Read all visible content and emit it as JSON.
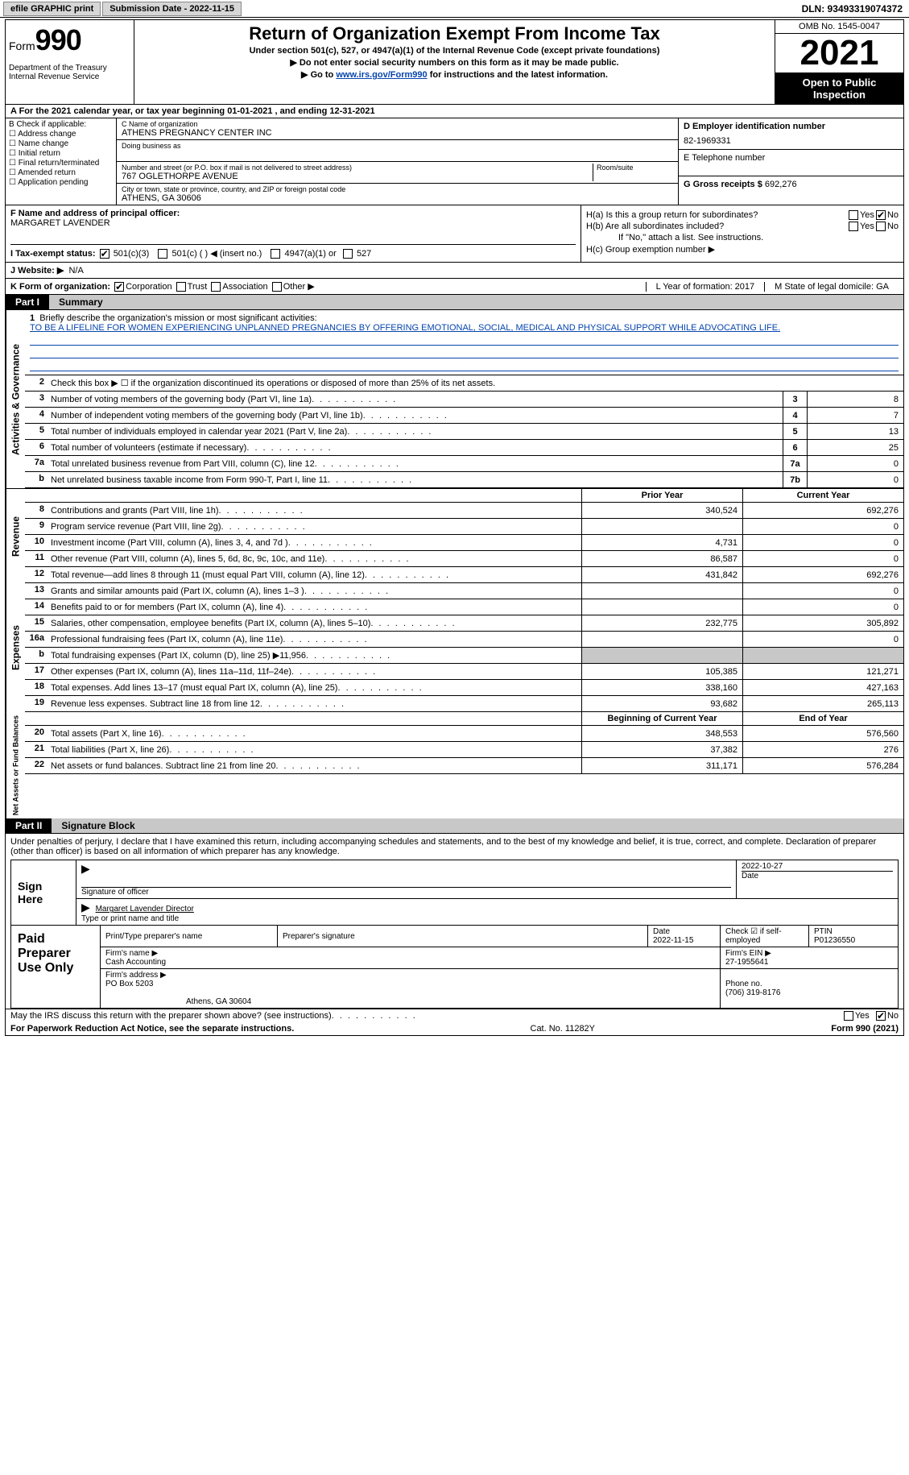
{
  "topbar": {
    "efile": "efile GRAPHIC print",
    "submission_label": "Submission Date - 2022-11-15",
    "dln": "DLN: 93493319074372"
  },
  "header": {
    "form_word": "Form",
    "form_num": "990",
    "dept": "Department of the Treasury Internal Revenue Service",
    "title": "Return of Organization Exempt From Income Tax",
    "sub1": "Under section 501(c), 527, or 4947(a)(1) of the Internal Revenue Code (except private foundations)",
    "sub2": "▶ Do not enter social security numbers on this form as it may be made public.",
    "sub3_pre": "▶ Go to ",
    "sub3_link": "www.irs.gov/Form990",
    "sub3_post": " for instructions and the latest information.",
    "omb": "OMB No. 1545-0047",
    "year": "2021",
    "open": "Open to Public Inspection"
  },
  "row_a": "A For the 2021 calendar year, or tax year beginning 01-01-2021   , and ending 12-31-2021",
  "col_b": {
    "label": "B Check if applicable:",
    "opts": [
      "Address change",
      "Name change",
      "Initial return",
      "Final return/terminated",
      "Amended return",
      "Application pending"
    ]
  },
  "col_c": {
    "name_label": "C Name of organization",
    "name": "ATHENS PREGNANCY CENTER INC",
    "dba_label": "Doing business as",
    "addr_label": "Number and street (or P.O. box if mail is not delivered to street address)",
    "room_label": "Room/suite",
    "addr": "767 OGLETHORPE AVENUE",
    "city_label": "City or town, state or province, country, and ZIP or foreign postal code",
    "city": "ATHENS, GA  30606"
  },
  "col_d": {
    "ein_label": "D Employer identification number",
    "ein": "82-1969331",
    "tel_label": "E Telephone number",
    "gross_label": "G Gross receipts $",
    "gross": "692,276"
  },
  "col_f": {
    "label": "F Name and address of principal officer:",
    "name": "MARGARET LAVENDER"
  },
  "col_h": {
    "ha": "H(a)  Is this a group return for subordinates?",
    "hb": "H(b)  Are all subordinates included?",
    "hb_note": "If \"No,\" attach a list. See instructions.",
    "hc": "H(c)  Group exemption number ▶",
    "yes": "Yes",
    "no": "No"
  },
  "row_i": {
    "label": "I    Tax-exempt status:",
    "o1": "501(c)(3)",
    "o2": "501(c) (  ) ◀ (insert no.)",
    "o3": "4947(a)(1) or",
    "o4": "527"
  },
  "row_j": {
    "label": "J   Website: ▶",
    "val": "N/A"
  },
  "row_k": {
    "label": "K Form of organization:",
    "o1": "Corporation",
    "o2": "Trust",
    "o3": "Association",
    "o4": "Other ▶",
    "l": "L Year of formation: 2017",
    "m": "M State of legal domicile: GA"
  },
  "part1": {
    "tab": "Part I",
    "title": "Summary"
  },
  "mission": {
    "num": "1",
    "label": "Briefly describe the organization's mission or most significant activities:",
    "text": "TO BE A LIFELINE FOR WOMEN EXPERIENCING UNPLANNED PREGNANCIES BY OFFERING EMOTIONAL, SOCIAL, MEDICAL AND PHYSICAL SUPPORT WHILE ADVOCATING LIFE."
  },
  "line2": "Check this box ▶ ☐ if the organization discontinued its operations or disposed of more than 25% of its net assets.",
  "side_labels": {
    "gov": "Activities & Governance",
    "rev": "Revenue",
    "exp": "Expenses",
    "net": "Net Assets or Fund Balances"
  },
  "gov_rows": [
    {
      "n": "3",
      "t": "Number of voting members of the governing body (Part VI, line 1a)",
      "box": "3",
      "v": "8"
    },
    {
      "n": "4",
      "t": "Number of independent voting members of the governing body (Part VI, line 1b)",
      "box": "4",
      "v": "7"
    },
    {
      "n": "5",
      "t": "Total number of individuals employed in calendar year 2021 (Part V, line 2a)",
      "box": "5",
      "v": "13"
    },
    {
      "n": "6",
      "t": "Total number of volunteers (estimate if necessary)",
      "box": "6",
      "v": "25"
    },
    {
      "n": "7a",
      "t": "Total unrelated business revenue from Part VIII, column (C), line 12",
      "box": "7a",
      "v": "0"
    },
    {
      "n": "b",
      "t": "Net unrelated business taxable income from Form 990-T, Part I, line 11",
      "box": "7b",
      "v": "0"
    }
  ],
  "col_headers": {
    "prior": "Prior Year",
    "current": "Current Year"
  },
  "rev_rows": [
    {
      "n": "8",
      "t": "Contributions and grants (Part VIII, line 1h)",
      "p": "340,524",
      "c": "692,276"
    },
    {
      "n": "9",
      "t": "Program service revenue (Part VIII, line 2g)",
      "p": "",
      "c": "0"
    },
    {
      "n": "10",
      "t": "Investment income (Part VIII, column (A), lines 3, 4, and 7d )",
      "p": "4,731",
      "c": "0"
    },
    {
      "n": "11",
      "t": "Other revenue (Part VIII, column (A), lines 5, 6d, 8c, 9c, 10c, and 11e)",
      "p": "86,587",
      "c": "0"
    },
    {
      "n": "12",
      "t": "Total revenue—add lines 8 through 11 (must equal Part VIII, column (A), line 12)",
      "p": "431,842",
      "c": "692,276"
    }
  ],
  "exp_rows": [
    {
      "n": "13",
      "t": "Grants and similar amounts paid (Part IX, column (A), lines 1–3 )",
      "p": "",
      "c": "0"
    },
    {
      "n": "14",
      "t": "Benefits paid to or for members (Part IX, column (A), line 4)",
      "p": "",
      "c": "0"
    },
    {
      "n": "15",
      "t": "Salaries, other compensation, employee benefits (Part IX, column (A), lines 5–10)",
      "p": "232,775",
      "c": "305,892"
    },
    {
      "n": "16a",
      "t": "Professional fundraising fees (Part IX, column (A), line 11e)",
      "p": "",
      "c": "0"
    },
    {
      "n": "b",
      "t": "Total fundraising expenses (Part IX, column (D), line 25) ▶11,956",
      "p": "shaded",
      "c": "shaded"
    },
    {
      "n": "17",
      "t": "Other expenses (Part IX, column (A), lines 11a–11d, 11f–24e)",
      "p": "105,385",
      "c": "121,271"
    },
    {
      "n": "18",
      "t": "Total expenses. Add lines 13–17 (must equal Part IX, column (A), line 25)",
      "p": "338,160",
      "c": "427,163"
    },
    {
      "n": "19",
      "t": "Revenue less expenses. Subtract line 18 from line 12",
      "p": "93,682",
      "c": "265,113"
    }
  ],
  "net_headers": {
    "begin": "Beginning of Current Year",
    "end": "End of Year"
  },
  "net_rows": [
    {
      "n": "20",
      "t": "Total assets (Part X, line 16)",
      "p": "348,553",
      "c": "576,560"
    },
    {
      "n": "21",
      "t": "Total liabilities (Part X, line 26)",
      "p": "37,382",
      "c": "276"
    },
    {
      "n": "22",
      "t": "Net assets or fund balances. Subtract line 21 from line 20",
      "p": "311,171",
      "c": "576,284"
    }
  ],
  "part2": {
    "tab": "Part II",
    "title": "Signature Block"
  },
  "sig_text": "Under penalties of perjury, I declare that I have examined this return, including accompanying schedules and statements, and to the best of my knowledge and belief, it is true, correct, and complete. Declaration of preparer (other than officer) is based on all information of which preparer has any knowledge.",
  "sign": {
    "here": "Sign Here",
    "sig_label": "Signature of officer",
    "date": "2022-10-27",
    "date_label": "Date",
    "name": "Margaret Lavender  Director",
    "name_label": "Type or print name and title"
  },
  "prep": {
    "label": "Paid Preparer Use Only",
    "r1": {
      "name_label": "Print/Type preparer's name",
      "sig_label": "Preparer's signature",
      "date_label": "Date",
      "date": "2022-11-15",
      "check_label": "Check ☑ if self-employed",
      "ptin_label": "PTIN",
      "ptin": "P01236550"
    },
    "r2": {
      "firm_label": "Firm's name   ▶",
      "firm": "Cash Accounting",
      "ein_label": "Firm's EIN ▶",
      "ein": "27-1955641"
    },
    "r3": {
      "addr_label": "Firm's address ▶",
      "addr": "PO Box 5203",
      "addr2": "Athens, GA  30604",
      "phone_label": "Phone no.",
      "phone": "(706) 319-8176"
    }
  },
  "footer": {
    "q": "May the IRS discuss this return with the preparer shown above? (see instructions)",
    "yes": "Yes",
    "no": "No"
  },
  "bottom": {
    "l": "For Paperwork Reduction Act Notice, see the separate instructions.",
    "m": "Cat. No. 11282Y",
    "r": "Form 990 (2021)"
  },
  "colors": {
    "link": "#0645ad",
    "shaded": "#c8c8c8",
    "black": "#000000",
    "btn": "#d6d6d6"
  }
}
